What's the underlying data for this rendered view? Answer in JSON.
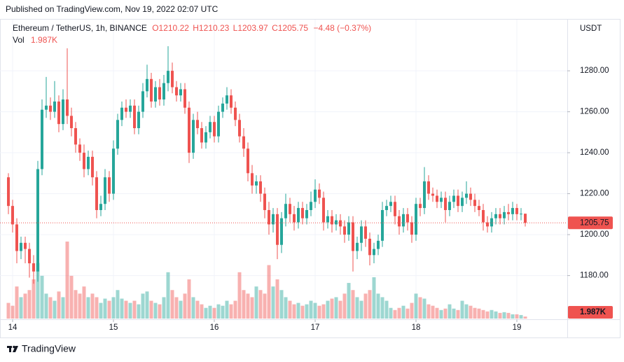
{
  "published": "Published on TradingView.com, Nov 19, 2022 02:07 UTC",
  "brand": "TradingView",
  "chart_data": {
    "type": "candlestick",
    "legend": {
      "symbol": "Ethereum / TetherUS, 1h, BINANCE",
      "open": "O1210.22",
      "high": "H1210.23",
      "low": "L1203.97",
      "close": "C1205.75",
      "change": "−4.48 (−0.37%)",
      "volume_title": "Vol"
    },
    "y_unit": "USDT",
    "up_color": "#26a69a",
    "down_color": "#ef5350",
    "grid": true,
    "ylim": [
      1159,
      1305
    ],
    "yticks": [
      {
        "value": 1180,
        "label": "1180.00"
      },
      {
        "value": 1200,
        "label": "1200.00"
      },
      {
        "value": 1220,
        "label": "1220.00"
      },
      {
        "value": 1240,
        "label": "1240.00"
      },
      {
        "value": 1260,
        "label": "1260.00"
      },
      {
        "value": 1280,
        "label": "1280.00"
      }
    ],
    "xticks": [
      {
        "value": 1,
        "label": "14"
      },
      {
        "value": 25,
        "label": "15"
      },
      {
        "value": 49,
        "label": "16"
      },
      {
        "value": 73,
        "label": "17"
      },
      {
        "value": 97,
        "label": "18"
      },
      {
        "value": 121,
        "label": "19"
      }
    ],
    "open": [
      1228,
      1214,
      1205,
      1192,
      1196,
      1193,
      1186,
      1182,
      1232,
      1261,
      1263,
      1260,
      1265,
      1254,
      1266,
      1258,
      1252,
      1244,
      1240,
      1232,
      1238,
      1228,
      1212,
      1215,
      1228,
      1220,
      1242,
      1256,
      1262,
      1260,
      1263,
      1252,
      1260,
      1270,
      1276,
      1265,
      1272,
      1266,
      1274,
      1280,
      1272,
      1268,
      1271,
      1262,
      1240,
      1256,
      1252,
      1245,
      1250,
      1255,
      1248,
      1260,
      1264,
      1268,
      1262,
      1256,
      1248,
      1242,
      1230,
      1224,
      1226,
      1220,
      1212,
      1205,
      1210,
      1195,
      1208,
      1215,
      1210,
      1206,
      1213,
      1208,
      1212,
      1216,
      1222,
      1218,
      1206,
      1209,
      1205,
      1207,
      1204,
      1200,
      1206,
      1192,
      1196,
      1204,
      1198,
      1190,
      1193,
      1197,
      1212,
      1214,
      1216,
      1209,
      1204,
      1210,
      1206,
      1200,
      1215,
      1213,
      1226,
      1220,
      1219,
      1216,
      1218,
      1212,
      1216,
      1219,
      1214,
      1218,
      1220,
      1217,
      1214,
      1212,
      1206,
      1204,
      1208,
      1210,
      1208,
      1211,
      1210,
      1213,
      1210,
      1210.22
    ],
    "high": [
      1230,
      1217,
      1208,
      1199,
      1199,
      1196,
      1190,
      1236,
      1266,
      1277,
      1267,
      1275,
      1268,
      1271,
      1291,
      1262,
      1255,
      1247,
      1244,
      1241,
      1241,
      1231,
      1219,
      1232,
      1231,
      1246,
      1259,
      1265,
      1266,
      1266,
      1266,
      1263,
      1274,
      1283,
      1279,
      1275,
      1276,
      1278,
      1292,
      1284,
      1275,
      1274,
      1274,
      1265,
      1259,
      1260,
      1255,
      1253,
      1258,
      1258,
      1263,
      1267,
      1272,
      1271,
      1265,
      1259,
      1252,
      1245,
      1234,
      1229,
      1229,
      1223,
      1216,
      1213,
      1213,
      1211,
      1220,
      1218,
      1214,
      1216,
      1216,
      1215,
      1221,
      1227,
      1225,
      1221,
      1212,
      1212,
      1210,
      1210,
      1207,
      1209,
      1209,
      1199,
      1207,
      1207,
      1201,
      1196,
      1200,
      1216,
      1217,
      1219,
      1219,
      1212,
      1213,
      1213,
      1209,
      1218,
      1218,
      1233,
      1229,
      1223,
      1222,
      1221,
      1221,
      1219,
      1222,
      1222,
      1221,
      1226,
      1223,
      1220,
      1217,
      1215,
      1209,
      1211,
      1213,
      1213,
      1214,
      1215,
      1216,
      1215,
      1213,
      1210.23
    ],
    "low": [
      1210,
      1201,
      1186,
      1188,
      1186,
      1179,
      1176,
      1177,
      1229,
      1257,
      1256,
      1257,
      1250,
      1251,
      1254,
      1248,
      1240,
      1236,
      1228,
      1229,
      1224,
      1208,
      1209,
      1212,
      1216,
      1217,
      1239,
      1253,
      1257,
      1257,
      1249,
      1249,
      1257,
      1267,
      1262,
      1262,
      1263,
      1263,
      1270,
      1269,
      1265,
      1265,
      1259,
      1235,
      1237,
      1249,
      1242,
      1242,
      1247,
      1245,
      1245,
      1257,
      1261,
      1259,
      1253,
      1245,
      1238,
      1226,
      1220,
      1220,
      1216,
      1208,
      1200,
      1201,
      1188,
      1191,
      1204,
      1206,
      1202,
      1203,
      1205,
      1205,
      1209,
      1213,
      1215,
      1202,
      1203,
      1201,
      1202,
      1200,
      1196,
      1197,
      1182,
      1188,
      1192,
      1194,
      1185,
      1186,
      1190,
      1194,
      1209,
      1211,
      1205,
      1200,
      1201,
      1202,
      1196,
      1197,
      1209,
      1210,
      1217,
      1216,
      1213,
      1213,
      1206,
      1209,
      1213,
      1211,
      1211,
      1215,
      1214,
      1211,
      1209,
      1202,
      1201,
      1201,
      1205,
      1205,
      1205,
      1207,
      1207,
      1207,
      1207,
      1203.97
    ],
    "close": [
      1214,
      1205,
      1192,
      1196,
      1193,
      1186,
      1182,
      1232,
      1261,
      1263,
      1260,
      1265,
      1254,
      1266,
      1258,
      1252,
      1244,
      1240,
      1232,
      1238,
      1228,
      1212,
      1215,
      1228,
      1220,
      1242,
      1256,
      1262,
      1260,
      1263,
      1252,
      1260,
      1270,
      1276,
      1265,
      1272,
      1266,
      1274,
      1280,
      1272,
      1268,
      1271,
      1262,
      1240,
      1256,
      1252,
      1245,
      1250,
      1255,
      1248,
      1260,
      1264,
      1268,
      1262,
      1256,
      1248,
      1242,
      1230,
      1224,
      1226,
      1220,
      1212,
      1205,
      1210,
      1195,
      1208,
      1215,
      1210,
      1206,
      1213,
      1208,
      1212,
      1216,
      1222,
      1218,
      1206,
      1209,
      1205,
      1207,
      1204,
      1200,
      1206,
      1192,
      1196,
      1204,
      1198,
      1190,
      1193,
      1197,
      1212,
      1214,
      1216,
      1209,
      1204,
      1210,
      1206,
      1200,
      1215,
      1213,
      1226,
      1220,
      1219,
      1216,
      1218,
      1212,
      1216,
      1219,
      1214,
      1218,
      1220,
      1217,
      1214,
      1212,
      1206,
      1204,
      1208,
      1210,
      1208,
      1211,
      1210,
      1213,
      1210,
      1210.22,
      1205.75
    ],
    "volume": [
      15400,
      12600,
      31500,
      21000,
      24500,
      28000,
      38500,
      54600,
      42000,
      24500,
      21000,
      17500,
      26600,
      21000,
      75600,
      42000,
      28000,
      24500,
      31500,
      21000,
      24500,
      21000,
      15400,
      19600,
      17500,
      21000,
      28000,
      19600,
      17500,
      15400,
      17500,
      14000,
      24500,
      26600,
      17500,
      15400,
      14000,
      21000,
      45500,
      28000,
      21000,
      17500,
      24500,
      38500,
      21000,
      17500,
      14000,
      10500,
      12600,
      10500,
      14000,
      12600,
      17500,
      14000,
      17500,
      45500,
      28000,
      24500,
      21000,
      31500,
      28000,
      24500,
      52500,
      31500,
      38500,
      28000,
      21000,
      17500,
      14000,
      15400,
      12600,
      14000,
      17500,
      15400,
      12600,
      14000,
      17500,
      19600,
      21000,
      17500,
      24500,
      35000,
      28000,
      21000,
      17500,
      24500,
      28000,
      40600,
      24500,
      21000,
      17500,
      10500,
      8400,
      10500,
      12600,
      9800,
      15400,
      24500,
      21000,
      19600,
      14000,
      12600,
      10500,
      8400,
      9800,
      14000,
      9800,
      8400,
      17500,
      14000,
      12600,
      10500,
      9800,
      8400,
      7000,
      8400,
      7000,
      5600,
      6300,
      5600,
      4200,
      4200,
      3500,
      1987
    ],
    "volume_label": "1.987K"
  }
}
